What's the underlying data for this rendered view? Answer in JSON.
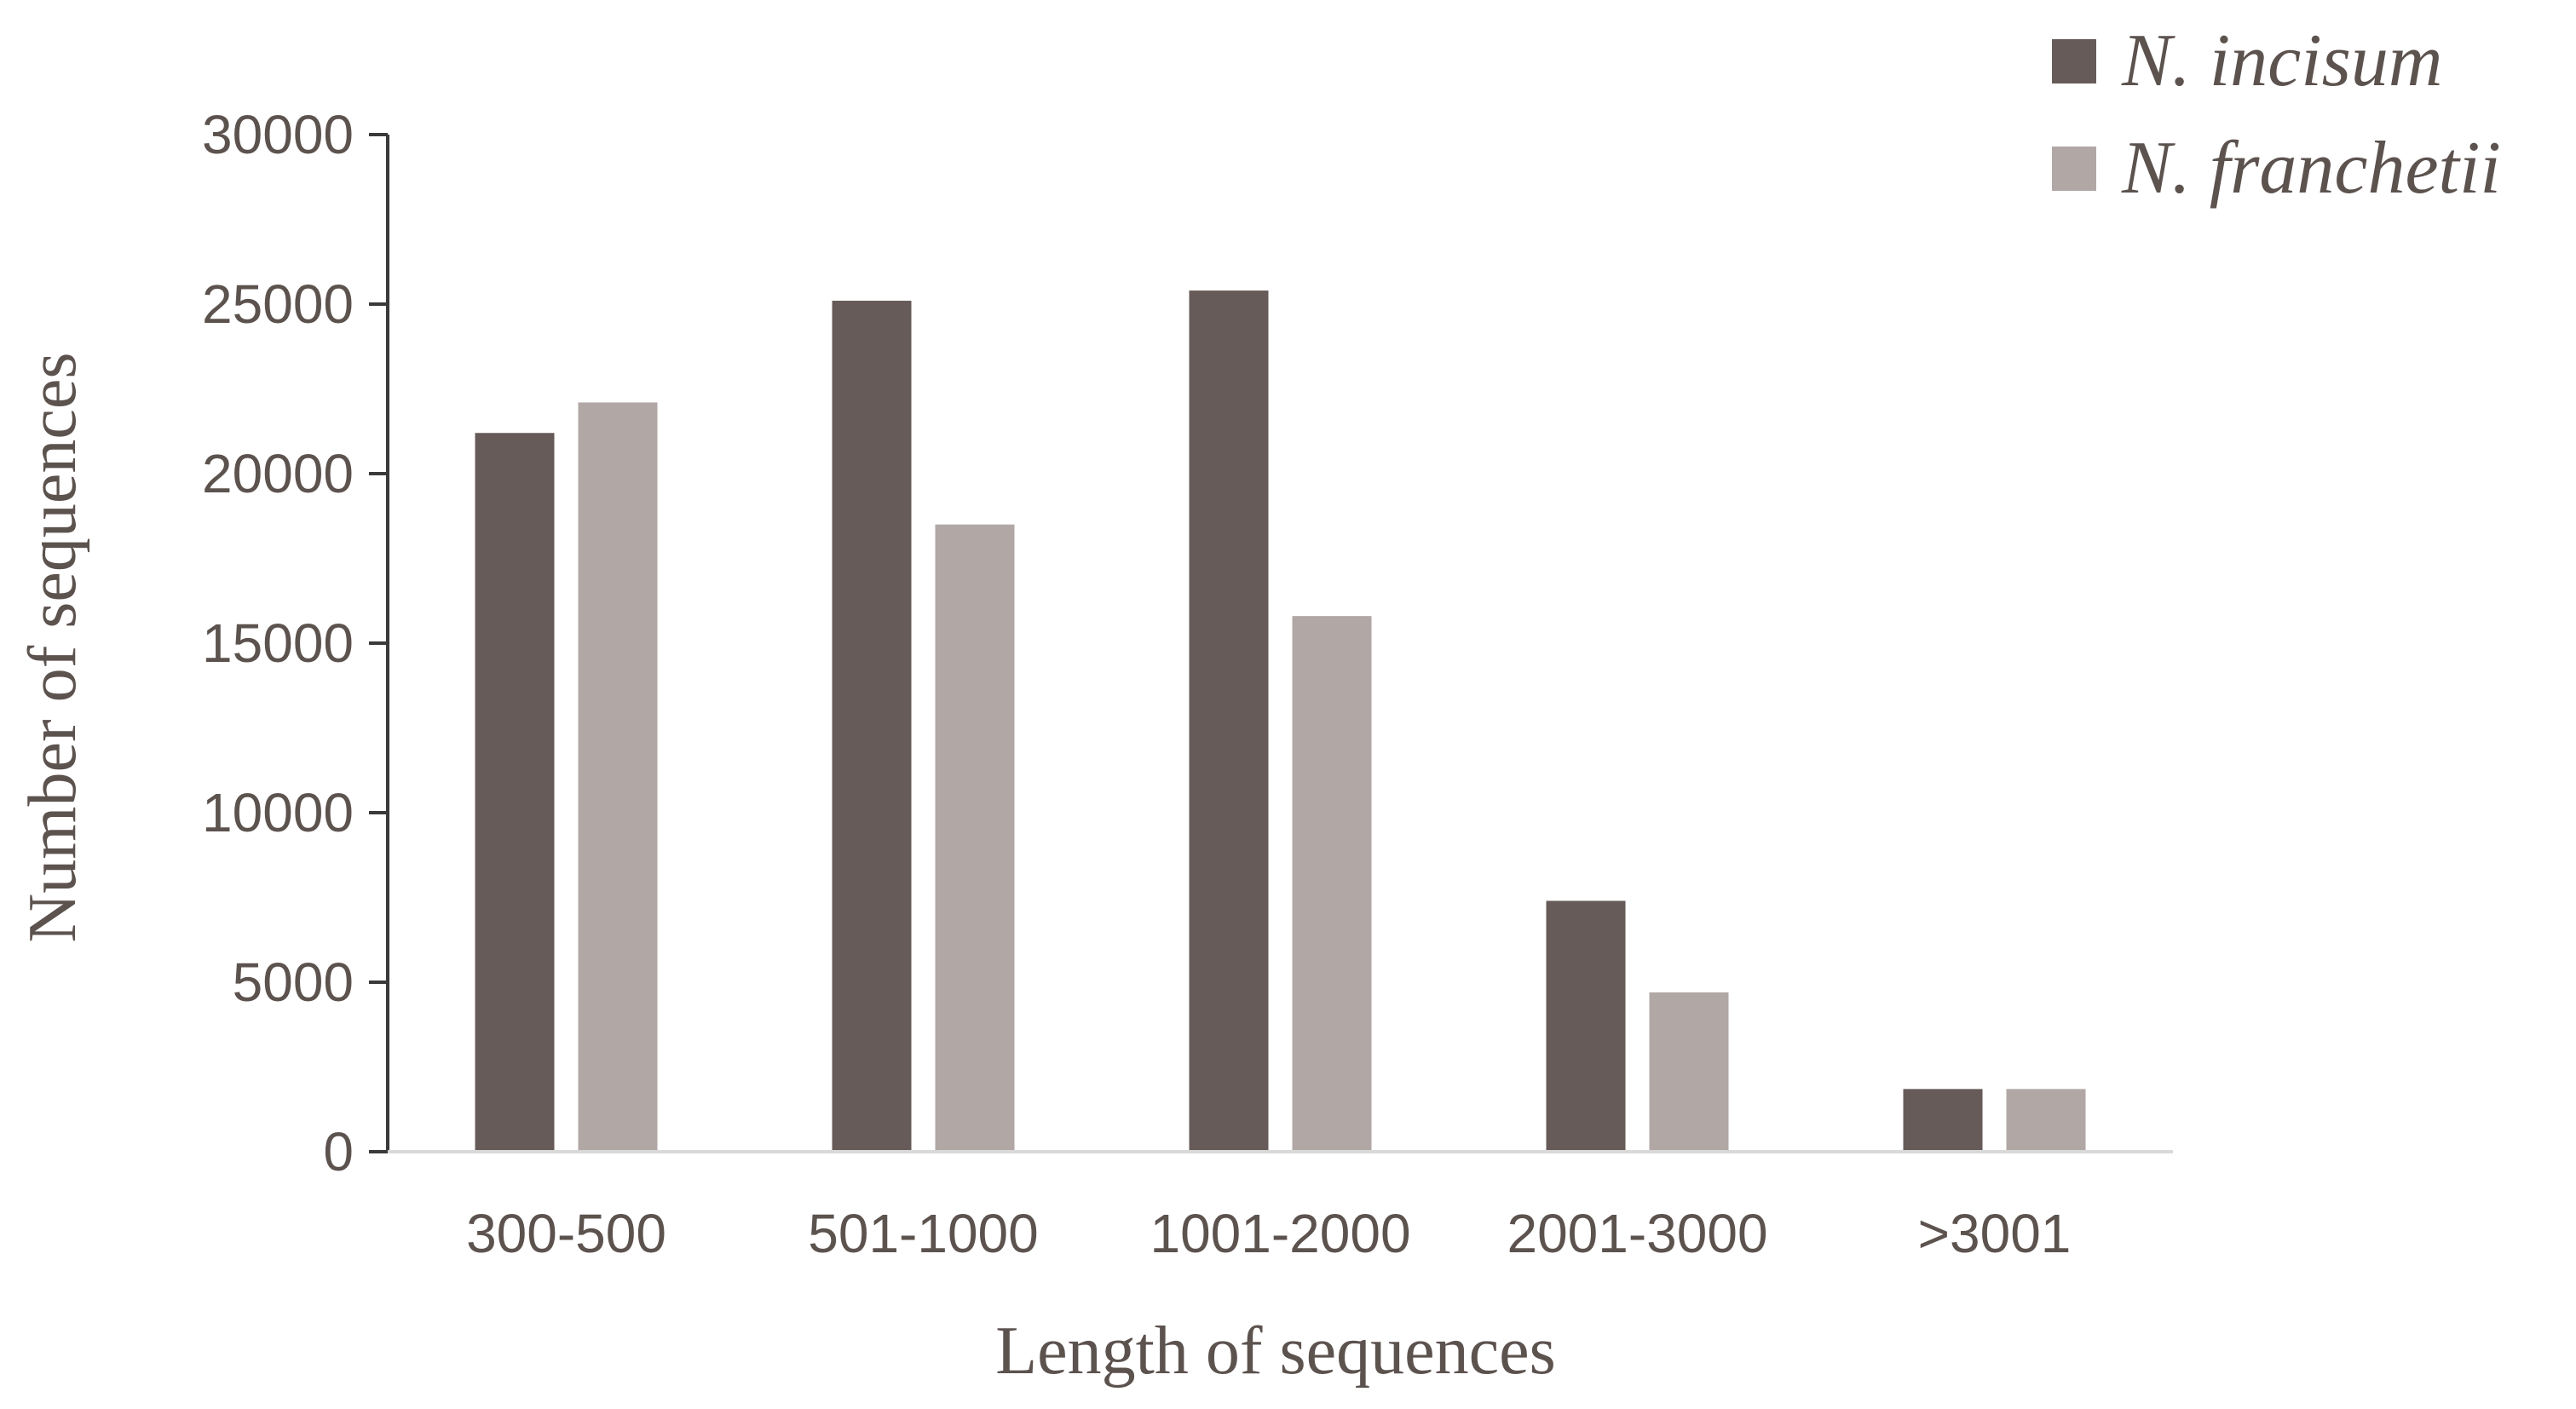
{
  "chart_data": {
    "type": "bar",
    "categories": [
      "300-500",
      "501-1000",
      "1001-2000",
      "2001-3000",
      ">3001"
    ],
    "series": [
      {
        "name": "N. incisum",
        "color": "#665b58",
        "values": [
          21200,
          25100,
          25400,
          7400,
          1850
        ]
      },
      {
        "name": "N. franchetii",
        "color": "#b1a7a5",
        "values": [
          22100,
          18500,
          15800,
          4700,
          1850
        ]
      }
    ],
    "title": "",
    "xlabel": "Length of sequences",
    "ylabel": "Number of sequences",
    "ylim": [
      0,
      30000
    ],
    "yticks": [
      0,
      5000,
      10000,
      15000,
      20000,
      25000,
      30000
    ],
    "grid": false,
    "legend_position": "top-right"
  },
  "colors": {
    "axis": "#3a3a3a",
    "text": "#5c524e"
  }
}
